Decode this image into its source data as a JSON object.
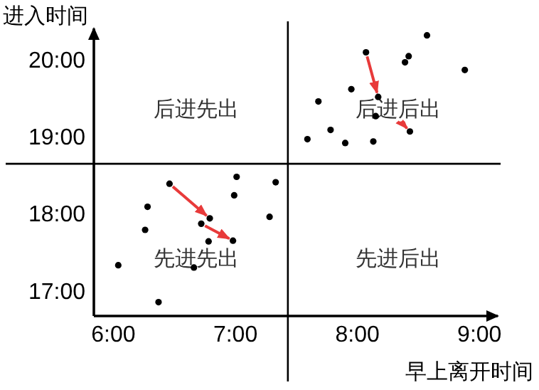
{
  "chart_data": {
    "type": "scatter",
    "xlabel": "早上离开时间",
    "ylabel": "进入时间",
    "xlim": [
      5.84,
      9.15
    ],
    "ylim": [
      16.69,
      20.43
    ],
    "xticks": [
      {
        "value": 6,
        "label": "6:00"
      },
      {
        "value": 7,
        "label": "7:00"
      },
      {
        "value": 8,
        "label": "8:00"
      },
      {
        "value": 9,
        "label": "9:00"
      }
    ],
    "yticks": [
      {
        "value": 17,
        "label": "17:00"
      },
      {
        "value": 18,
        "label": "18:00"
      },
      {
        "value": 19,
        "label": "19:00"
      },
      {
        "value": 20,
        "label": "20:00"
      }
    ],
    "ref_lines": [
      {
        "axis": "x",
        "value": 7.43,
        "color": "#000000"
      },
      {
        "axis": "y",
        "value": 18.67,
        "color": "#000000"
      }
    ],
    "annotations": [
      "后进先出",
      "后进后出",
      "先进先出",
      "先进后出"
    ],
    "grid": false,
    "marker": "circle",
    "series": [
      {
        "color": "#000000",
        "x": [
          8.07,
          8.57,
          8.42,
          8.39,
          8.88,
          7.95,
          7.68,
          8.17,
          8.15,
          7.78,
          8.43,
          7.59,
          7.9,
          8.13,
          6.46,
          7.01,
          7.33,
          6.99,
          6.28,
          7.28,
          6.79,
          6.72,
          6.26,
          6.78,
          6.98,
          6.04,
          6.66,
          6.37
        ],
        "values": [
          20.12,
          20.34,
          20.07,
          19.99,
          19.89,
          19.64,
          19.48,
          19.54,
          19.29,
          19.11,
          19.09,
          18.99,
          18.94,
          18.96,
          18.41,
          18.5,
          18.43,
          18.26,
          18.11,
          17.98,
          17.96,
          17.89,
          17.81,
          17.66,
          17.67,
          17.35,
          17.32,
          16.87
        ]
      }
    ]
  }
}
